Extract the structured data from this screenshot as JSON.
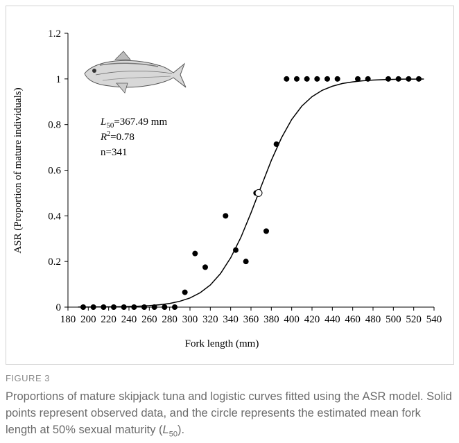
{
  "chart_data": {
    "type": "scatter",
    "x_label": "Fork length (mm)",
    "y_label": "ASR (Proportion of mature individuals)",
    "xlim": [
      180,
      540
    ],
    "xticks": [
      180,
      200,
      220,
      240,
      260,
      280,
      300,
      320,
      340,
      360,
      380,
      400,
      420,
      440,
      460,
      480,
      500,
      520,
      540
    ],
    "ylim": [
      0,
      1.2
    ],
    "yticks": [
      0,
      0.2,
      0.4,
      0.6,
      0.8,
      1,
      1.2
    ],
    "series": [
      {
        "color": "#000000",
        "x": [
          195,
          205,
          215,
          225,
          235,
          245,
          255,
          265,
          275,
          285,
          295,
          305,
          315,
          335,
          345,
          355,
          365,
          375,
          385,
          395,
          405,
          415,
          425,
          435,
          445,
          465,
          475,
          495,
          505,
          515,
          525
        ],
        "values": [
          0,
          0,
          0,
          0,
          0,
          0,
          0,
          0,
          0,
          0,
          0.065,
          0.235,
          0.175,
          0.4,
          0.25,
          0.2,
          0.5,
          0.333,
          0.714,
          1,
          1,
          1,
          1,
          1,
          1,
          1,
          1,
          1,
          1,
          1,
          1
        ]
      }
    ],
    "fit_curve": {
      "color": "#000000",
      "x": [
        190,
        200,
        210,
        220,
        230,
        240,
        250,
        260,
        270,
        280,
        290,
        300,
        310,
        320,
        330,
        340,
        350,
        360,
        370,
        380,
        390,
        400,
        410,
        420,
        430,
        440,
        450,
        460,
        470,
        480,
        490,
        500,
        510,
        520,
        530
      ],
      "values": [
        0.00024,
        0.00038,
        0.00061,
        0.00098,
        0.00156,
        0.0025,
        0.004,
        0.0064,
        0.0102,
        0.016,
        0.0256,
        0.04,
        0.063,
        0.097,
        0.147,
        0.216,
        0.305,
        0.413,
        0.529,
        0.643,
        0.742,
        0.822,
        0.881,
        0.922,
        0.95,
        0.968,
        0.98,
        0.987,
        0.992,
        0.995,
        0.997,
        0.998,
        0.999,
        0.999,
        0.9995
      ]
    },
    "l50_point": {
      "x": 367.49,
      "y": 0.5
    },
    "annotations": {
      "l50": [
        "L",
        "50",
        "=367.49 mm"
      ],
      "r2": [
        "R",
        "2",
        "=0.78"
      ],
      "n": "n=341"
    }
  },
  "figure_label": "FIGURE 3",
  "caption": [
    "Proportions of mature skipjack tuna and logistic curves fitted using the ASR model. Solid points represent observed data, and the circle represents the estimated mean fork length at 50% sexual maturity (",
    "L",
    "50",
    ")."
  ]
}
